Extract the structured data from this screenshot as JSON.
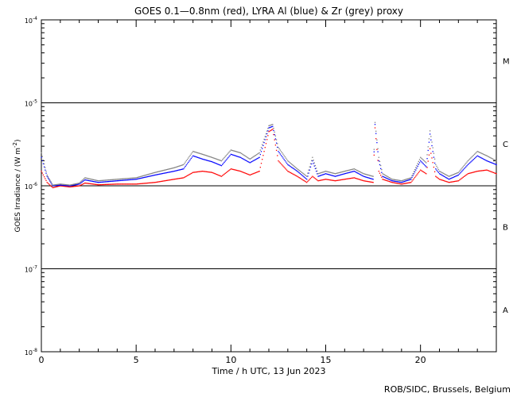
{
  "chart_data": {
    "type": "scatter",
    "title": "GOES 0.1—0.8nm (red), LYRA Al (blue) & Zr (grey) proxy",
    "xlabel": "Time / h UTC, 13 Jun 2023",
    "ylabel_main": "GOES Irradiance / (W m",
    "ylabel_sup": "-2",
    "ylabel_end": ")",
    "xlim": [
      0,
      24
    ],
    "ylim": [
      1e-08,
      0.0001
    ],
    "yscale": "log",
    "x_ticks": [
      0,
      5,
      10,
      15,
      20
    ],
    "x_tick_labels": [
      "0",
      "5",
      "10",
      "15",
      "20"
    ],
    "y_tick_labels": [
      {
        "value": 0.0001,
        "base": "10",
        "exp": "-4"
      },
      {
        "value": 1e-05,
        "base": "10",
        "exp": "-5"
      },
      {
        "value": 1e-06,
        "base": "10",
        "exp": "-6"
      },
      {
        "value": 1e-07,
        "base": "10",
        "exp": "-7"
      },
      {
        "value": 1e-08,
        "base": "10",
        "exp": "-8"
      }
    ],
    "class_lines": [
      1e-05,
      1e-06,
      1e-07
    ],
    "class_labels": [
      {
        "label": "M",
        "y": 3.2e-05
      },
      {
        "label": "C",
        "y": 3.2e-06
      },
      {
        "label": "B",
        "y": 3.2e-07
      },
      {
        "label": "A",
        "y": 3.2e-08
      }
    ],
    "credit": "ROB/SIDC, Brussels, Belgium",
    "series": [
      {
        "color": "#ff0000",
        "x": [
          0,
          0.3,
          0.6,
          1,
          1.5,
          2,
          2.3,
          3,
          4,
          5,
          6,
          7,
          7.5,
          8,
          8.5,
          9,
          9.5,
          10,
          10.5,
          11,
          11.5,
          12,
          12.2,
          12.5,
          13,
          13.5,
          14,
          14.3,
          14.6,
          15,
          15.5,
          16,
          16.5,
          17,
          17.5,
          17.6,
          17.8,
          18,
          18.5,
          19,
          19.5,
          20,
          20.3,
          20.5,
          20.8,
          21,
          21.5,
          22,
          22.5,
          23,
          23.5,
          24
        ],
        "y": [
          1.5e-06,
          1.1e-06,
          9.5e-07,
          1e-06,
          9.7e-07,
          1e-06,
          1.08e-06,
          1.03e-06,
          1.05e-06,
          1.05e-06,
          1.1e-06,
          1.2e-06,
          1.25e-06,
          1.45e-06,
          1.5e-06,
          1.45e-06,
          1.3e-06,
          1.6e-06,
          1.5e-06,
          1.35e-06,
          1.5e-06,
          4.5e-06,
          4.8e-06,
          2e-06,
          1.5e-06,
          1.3e-06,
          1.1e-06,
          1.3e-06,
          1.15e-06,
          1.2e-06,
          1.15e-06,
          1.2e-06,
          1.25e-06,
          1.15e-06,
          1.1e-06,
          5e-06,
          1.5e-06,
          1.2e-06,
          1.1e-06,
          1.05e-06,
          1.1e-06,
          1.55e-06,
          1.4e-06,
          2.8e-06,
          1.3e-06,
          1.2e-06,
          1.1e-06,
          1.15e-06,
          1.4e-06,
          1.5e-06,
          1.55e-06,
          1.4e-06
        ]
      },
      {
        "color": "#0000ff",
        "x": [
          0,
          0.3,
          0.6,
          1,
          1.5,
          2,
          2.3,
          3,
          4,
          5,
          6,
          7,
          7.5,
          8,
          8.5,
          9,
          9.5,
          10,
          10.5,
          11,
          11.5,
          12,
          12.2,
          12.5,
          13,
          13.5,
          14,
          14.3,
          14.6,
          15,
          15.5,
          16,
          16.5,
          17,
          17.5,
          17.6,
          17.8,
          18,
          18.5,
          19,
          19.5,
          20,
          20.3,
          20.5,
          20.8,
          21,
          21.5,
          22,
          22.5,
          23,
          23.5,
          24
        ],
        "y": [
          2.2e-06,
          1.3e-06,
          1e-06,
          1.02e-06,
          1e-06,
          1.05e-06,
          1.18e-06,
          1.1e-06,
          1.15e-06,
          1.2e-06,
          1.35e-06,
          1.5e-06,
          1.6e-06,
          2.3e-06,
          2.1e-06,
          1.95e-06,
          1.75e-06,
          2.4e-06,
          2.2e-06,
          1.9e-06,
          2.2e-06,
          5e-06,
          5.2e-06,
          2.6e-06,
          1.8e-06,
          1.5e-06,
          1.2e-06,
          2e-06,
          1.3e-06,
          1.4e-06,
          1.3e-06,
          1.4e-06,
          1.5e-06,
          1.3e-06,
          1.2e-06,
          5.5e-06,
          2e-06,
          1.3e-06,
          1.15e-06,
          1.1e-06,
          1.2e-06,
          2e-06,
          1.7e-06,
          4.2e-06,
          1.6e-06,
          1.4e-06,
          1.2e-06,
          1.35e-06,
          1.8e-06,
          2.3e-06,
          2e-06,
          1.8e-06
        ]
      },
      {
        "color": "#808080",
        "x": [
          0,
          0.3,
          0.6,
          1,
          1.5,
          2,
          2.3,
          3,
          4,
          5,
          6,
          7,
          7.5,
          8,
          8.5,
          9,
          9.5,
          10,
          10.5,
          11,
          11.5,
          12,
          12.2,
          12.5,
          13,
          13.5,
          14,
          14.3,
          14.6,
          15,
          15.5,
          16,
          16.5,
          17,
          17.5,
          17.6,
          17.8,
          18,
          18.5,
          19,
          19.5,
          20,
          20.3,
          20.5,
          20.8,
          21,
          21.5,
          22,
          22.5,
          23,
          23.5,
          24
        ],
        "y": [
          2.5e-06,
          1.35e-06,
          1.02e-06,
          1.05e-06,
          1.02e-06,
          1.08e-06,
          1.25e-06,
          1.15e-06,
          1.2e-06,
          1.25e-06,
          1.45e-06,
          1.65e-06,
          1.8e-06,
          2.6e-06,
          2.4e-06,
          2.2e-06,
          2e-06,
          2.7e-06,
          2.5e-06,
          2.1e-06,
          2.5e-06,
          5.3e-06,
          5.5e-06,
          2.9e-06,
          2e-06,
          1.6e-06,
          1.3e-06,
          2.2e-06,
          1.4e-06,
          1.5e-06,
          1.4e-06,
          1.5e-06,
          1.6e-06,
          1.4e-06,
          1.3e-06,
          5.8e-06,
          2.2e-06,
          1.4e-06,
          1.2e-06,
          1.15e-06,
          1.25e-06,
          2.2e-06,
          1.9e-06,
          4.6e-06,
          1.8e-06,
          1.5e-06,
          1.3e-06,
          1.45e-06,
          2e-06,
          2.6e-06,
          2.3e-06,
          2e-06
        ]
      }
    ]
  }
}
